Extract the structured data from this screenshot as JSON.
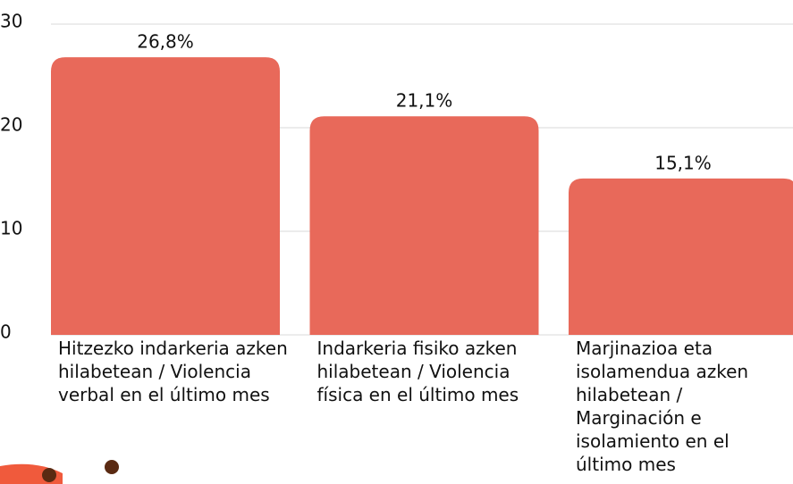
{
  "chart_data": {
    "type": "bar",
    "categories": [
      "Hitzezko indarkeria azken hilabetean / Violencia verbal en el último mes",
      "Indarkeria fisiko azken hilabetean / Violencia física en el último mes",
      "Marjinazioa eta isolamendua azken hilabetean / Marginación e isolamiento en el último mes"
    ],
    "values": [
      26.8,
      21.1,
      15.1
    ],
    "value_labels": [
      "26,8%",
      "21,1%",
      "15,1%"
    ],
    "color": "#e8695a",
    "ylim": [
      0,
      30
    ],
    "yticks": [
      0,
      10,
      20,
      30
    ],
    "grid": true
  }
}
